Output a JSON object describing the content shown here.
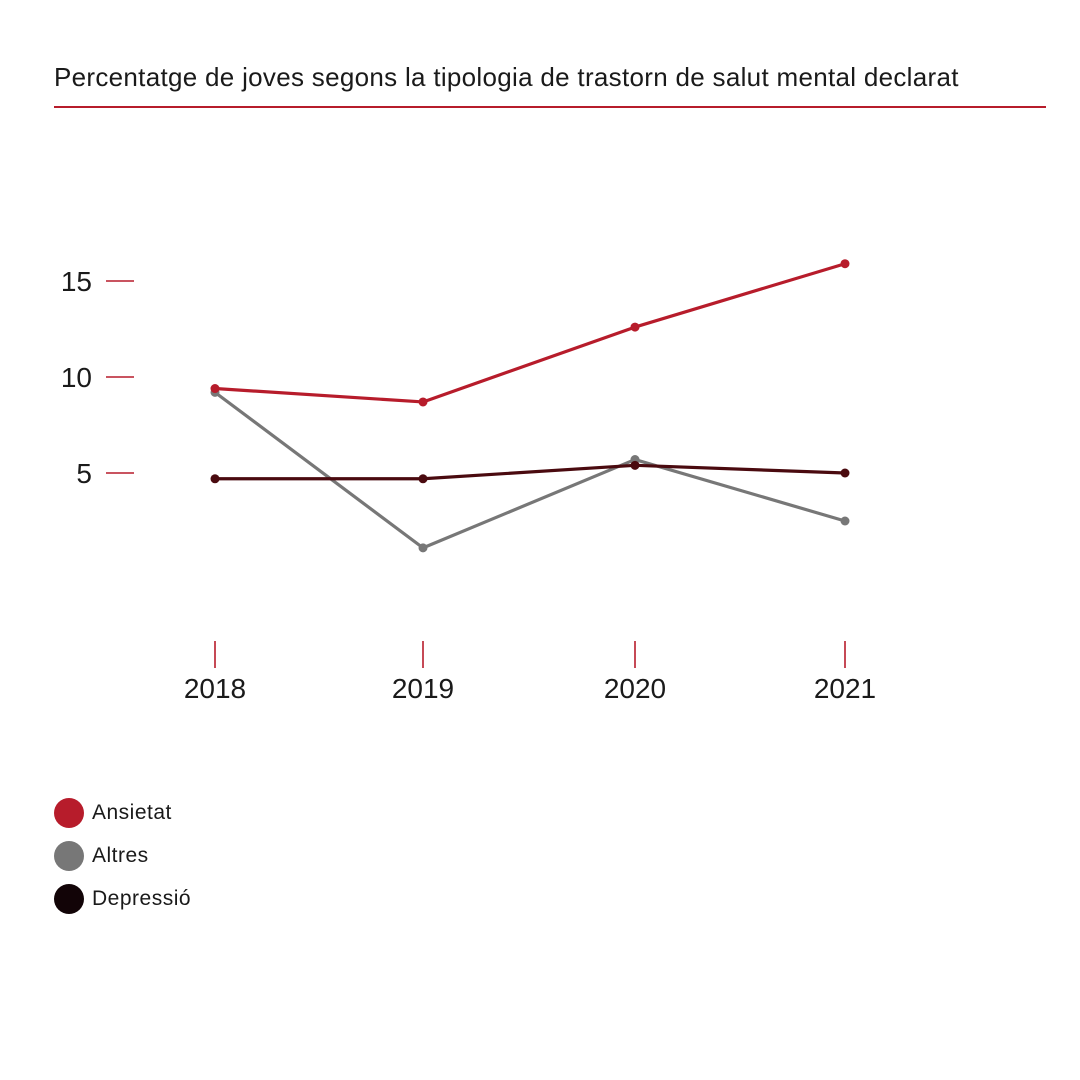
{
  "title": "Percentatge de joves segons la tipologia de trastorn de salut mental declarat",
  "colors": {
    "accent": "#b71c2b",
    "ansietat": "#b71c2b",
    "altres": "#777777",
    "depressio": "#4a0a0f",
    "depressio_legend": "#120407"
  },
  "chart_data": {
    "type": "line",
    "title": "Percentatge de joves segons la tipologia de trastorn de salut mental declarat",
    "x": [
      "2018",
      "2019",
      "2020",
      "2021"
    ],
    "yticks": [
      "5",
      "10",
      "15"
    ],
    "ylim": [
      0,
      16
    ],
    "grid": false,
    "legend_position": "bottom-left",
    "series": [
      {
        "name": "Ansietat",
        "values": [
          9.4,
          8.7,
          12.6,
          15.9
        ]
      },
      {
        "name": "Altres",
        "values": [
          9.2,
          1.1,
          5.7,
          2.5
        ]
      },
      {
        "name": "Depressió",
        "values": [
          4.7,
          4.7,
          5.4,
          5.0
        ]
      }
    ]
  },
  "legend": [
    {
      "label": "Ansietat"
    },
    {
      "label": "Altres"
    },
    {
      "label": "Depressió"
    }
  ]
}
